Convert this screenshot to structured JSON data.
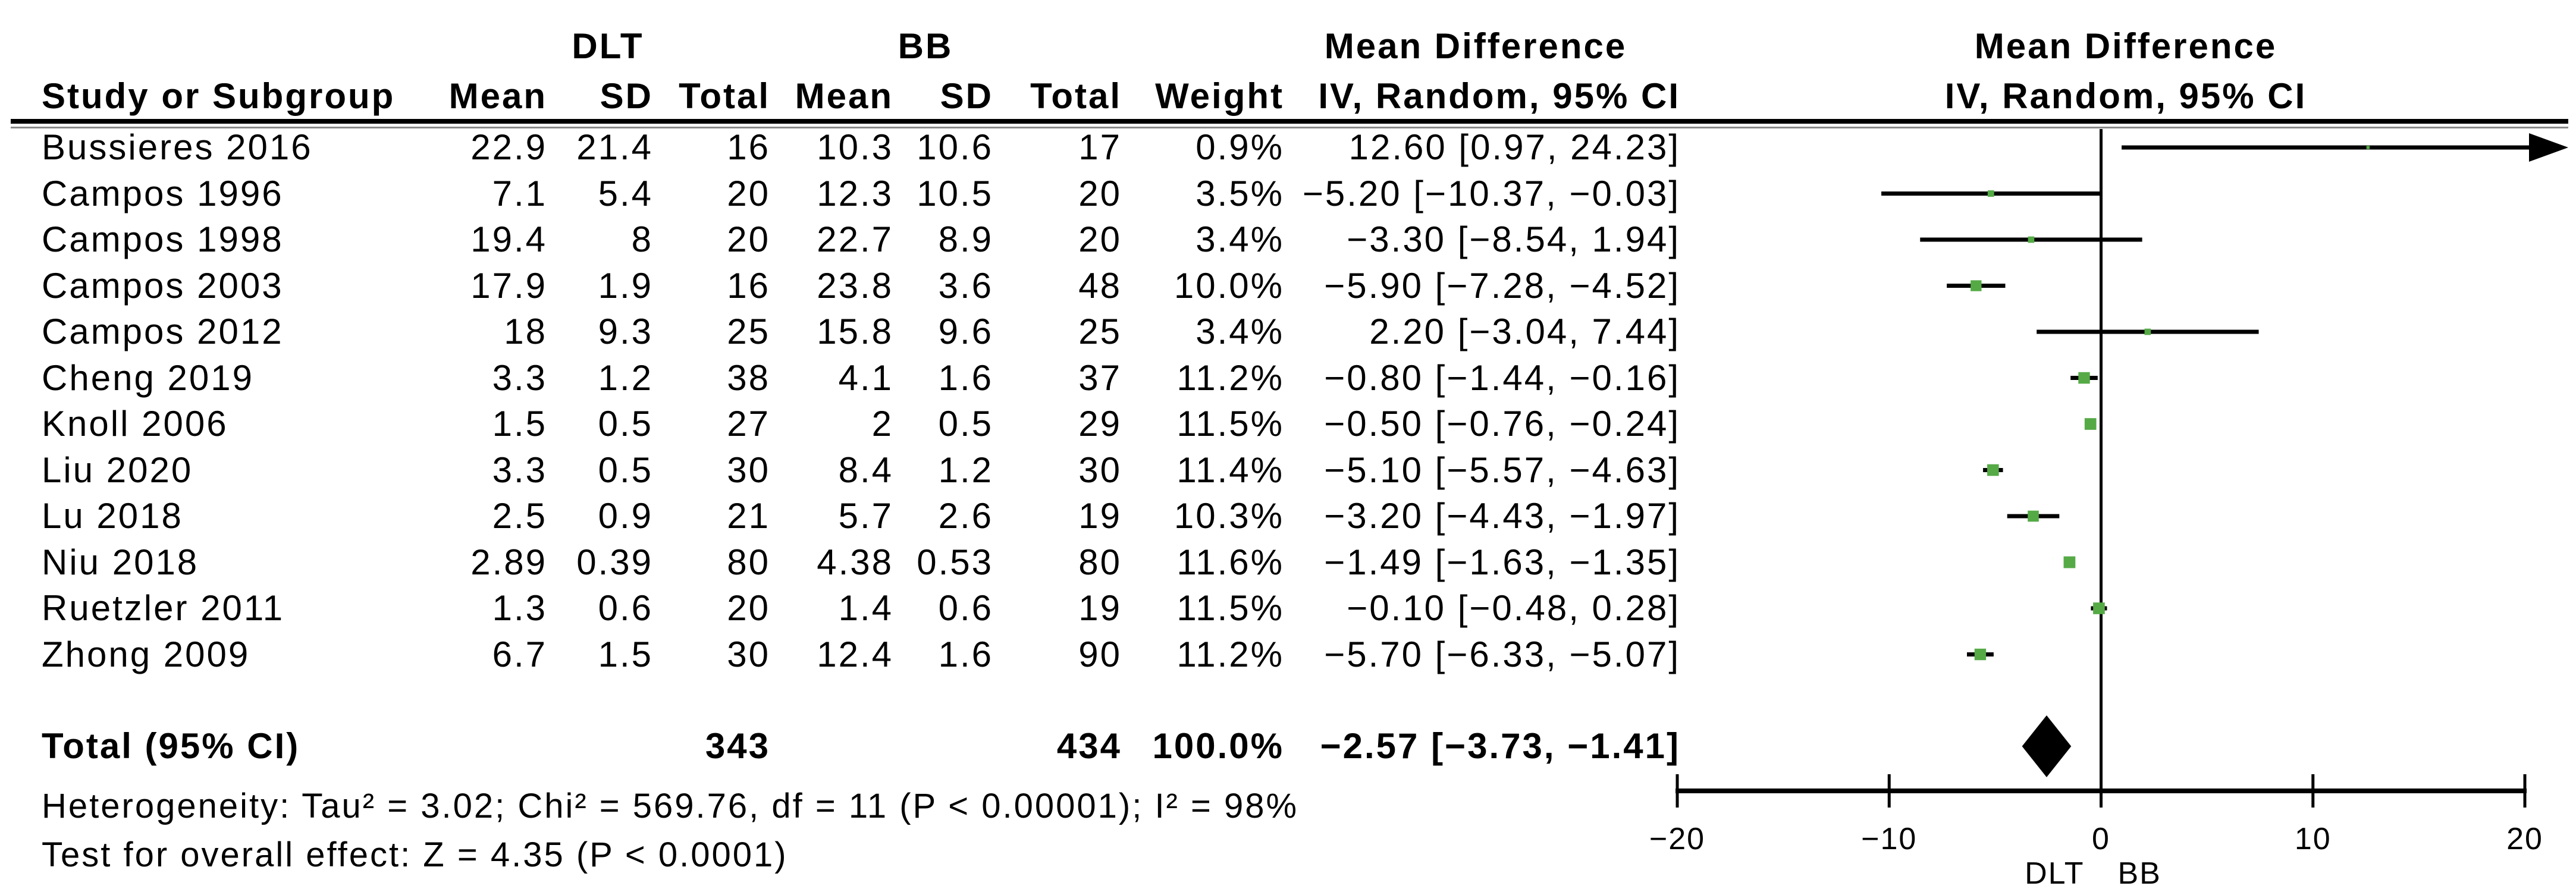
{
  "chart_data": {
    "type": "scatter",
    "subtype": "forest-plot-mean-difference",
    "group_labels": {
      "group1": "DLT",
      "group2": "BB"
    },
    "headers": {
      "study": "Study or Subgroup",
      "mean": "Mean",
      "sd": "SD",
      "total": "Total",
      "weight": "Weight",
      "md_line1": "Mean Difference",
      "md_line2": "IV, Random, 95% CI"
    },
    "studies": [
      {
        "name": "Bussieres 2016",
        "mean1": "22.9",
        "sd1": "21.4",
        "total1": "16",
        "mean2": "10.3",
        "sd2": "10.6",
        "total2": "17",
        "weight": "0.9%",
        "ci_text": "12.60 [0.97, 24.23]",
        "md": 12.6,
        "lo": 0.97,
        "hi": 24.23,
        "weight_value": 0.9
      },
      {
        "name": "Campos 1996",
        "mean1": "7.1",
        "sd1": "5.4",
        "total1": "20",
        "mean2": "12.3",
        "sd2": "10.5",
        "total2": "20",
        "weight": "3.5%",
        "ci_text": "−5.20 [−10.37, −0.03]",
        "md": -5.2,
        "lo": -10.37,
        "hi": -0.03,
        "weight_value": 3.5
      },
      {
        "name": "Campos 1998",
        "mean1": "19.4",
        "sd1": "8",
        "total1": "20",
        "mean2": "22.7",
        "sd2": "8.9",
        "total2": "20",
        "weight": "3.4%",
        "ci_text": "−3.30 [−8.54, 1.94]",
        "md": -3.3,
        "lo": -8.54,
        "hi": 1.94,
        "weight_value": 3.4
      },
      {
        "name": "Campos 2003",
        "mean1": "17.9",
        "sd1": "1.9",
        "total1": "16",
        "mean2": "23.8",
        "sd2": "3.6",
        "total2": "48",
        "weight": "10.0%",
        "ci_text": "−5.90 [−7.28, −4.52]",
        "md": -5.9,
        "lo": -7.28,
        "hi": -4.52,
        "weight_value": 10.0
      },
      {
        "name": "Campos 2012",
        "mean1": "18",
        "sd1": "9.3",
        "total1": "25",
        "mean2": "15.8",
        "sd2": "9.6",
        "total2": "25",
        "weight": "3.4%",
        "ci_text": "2.20 [−3.04, 7.44]",
        "md": 2.2,
        "lo": -3.04,
        "hi": 7.44,
        "weight_value": 3.4
      },
      {
        "name": "Cheng 2019",
        "mean1": "3.3",
        "sd1": "1.2",
        "total1": "38",
        "mean2": "4.1",
        "sd2": "1.6",
        "total2": "37",
        "weight": "11.2%",
        "ci_text": "−0.80 [−1.44, −0.16]",
        "md": -0.8,
        "lo": -1.44,
        "hi": -0.16,
        "weight_value": 11.2
      },
      {
        "name": "Knoll 2006",
        "mean1": "1.5",
        "sd1": "0.5",
        "total1": "27",
        "mean2": "2",
        "sd2": "0.5",
        "total2": "29",
        "weight": "11.5%",
        "ci_text": "−0.50 [−0.76, −0.24]",
        "md": -0.5,
        "lo": -0.76,
        "hi": -0.24,
        "weight_value": 11.5
      },
      {
        "name": "Liu 2020",
        "mean1": "3.3",
        "sd1": "0.5",
        "total1": "30",
        "mean2": "8.4",
        "sd2": "1.2",
        "total2": "30",
        "weight": "11.4%",
        "ci_text": "−5.10 [−5.57, −4.63]",
        "md": -5.1,
        "lo": -5.57,
        "hi": -4.63,
        "weight_value": 11.4
      },
      {
        "name": "Lu 2018",
        "mean1": "2.5",
        "sd1": "0.9",
        "total1": "21",
        "mean2": "5.7",
        "sd2": "2.6",
        "total2": "19",
        "weight": "10.3%",
        "ci_text": "−3.20 [−4.43, −1.97]",
        "md": -3.2,
        "lo": -4.43,
        "hi": -1.97,
        "weight_value": 10.3
      },
      {
        "name": "Niu 2018",
        "mean1": "2.89",
        "sd1": "0.39",
        "total1": "80",
        "mean2": "4.38",
        "sd2": "0.53",
        "total2": "80",
        "weight": "11.6%",
        "ci_text": "−1.49 [−1.63, −1.35]",
        "md": -1.49,
        "lo": -1.63,
        "hi": -1.35,
        "weight_value": 11.6
      },
      {
        "name": "Ruetzler 2011",
        "mean1": "1.3",
        "sd1": "0.6",
        "total1": "20",
        "mean2": "1.4",
        "sd2": "0.6",
        "total2": "19",
        "weight": "11.5%",
        "ci_text": "−0.10 [−0.48, 0.28]",
        "md": -0.1,
        "lo": -0.48,
        "hi": 0.28,
        "weight_value": 11.5
      },
      {
        "name": "Zhong 2009",
        "mean1": "6.7",
        "sd1": "1.5",
        "total1": "30",
        "mean2": "12.4",
        "sd2": "1.6",
        "total2": "90",
        "weight": "11.2%",
        "ci_text": "−5.70 [−6.33, −5.07]",
        "md": -5.7,
        "lo": -6.33,
        "hi": -5.07,
        "weight_value": 11.2
      }
    ],
    "summary": {
      "label": "Total (95% CI)",
      "total1": "343",
      "total2": "434",
      "weight": "100.0%",
      "ci_text": "−2.57 [−3.73, −1.41]",
      "md": -2.57,
      "lo": -3.73,
      "hi": -1.41
    },
    "footnotes": {
      "heterogeneity": "Heterogeneity: Tau² = 3.02; Chi² = 569.76, df = 11 (P < 0.00001); I² = 98%",
      "overall_effect": "Test for overall effect: Z = 4.35 (P < 0.0001)"
    },
    "axis": {
      "min": -20,
      "max": 20,
      "ticks": [
        -20,
        -10,
        0,
        10,
        20
      ],
      "tick_labels": [
        "−20",
        "−10",
        "0",
        "10",
        "20"
      ],
      "favours_left": "DLT",
      "favours_right": "BB"
    },
    "colors": {
      "marker_green": "#55AA46",
      "line_black": "#000000",
      "rule_gray": "#8a8a8a"
    }
  }
}
